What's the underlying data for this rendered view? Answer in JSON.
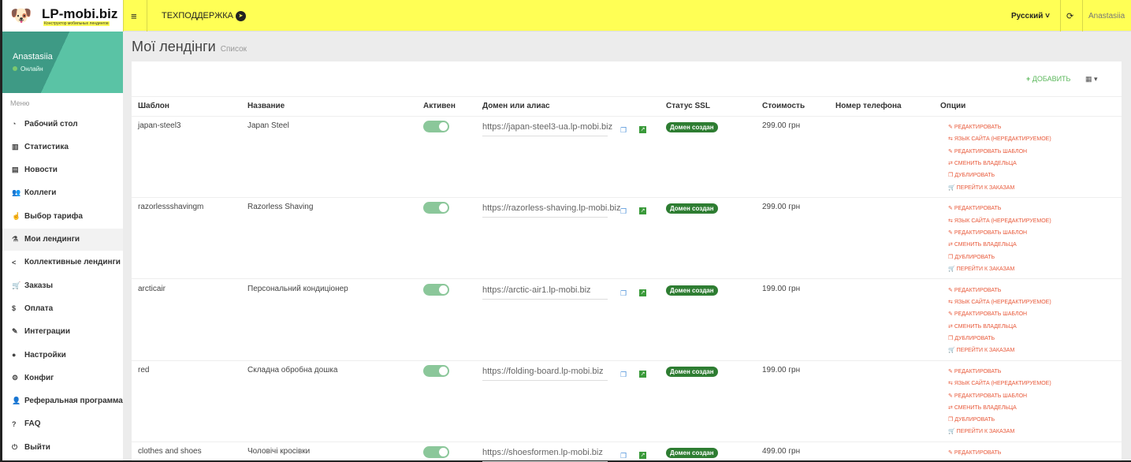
{
  "brand": {
    "name": "LP-mobi.biz",
    "tagline": "Конструктор мобильных лендингов"
  },
  "topbar": {
    "support": "ТЕХПОДДЕРЖКА",
    "language": "Русский",
    "user": "Anastasiia"
  },
  "sidebar": {
    "user": "Anastasiia",
    "status": "Онлайн",
    "menu_header": "Меню",
    "items": [
      {
        "label": "Рабочий стол",
        "icon": "dashboard-icon"
      },
      {
        "label": "Статистика",
        "icon": "bar-chart-icon"
      },
      {
        "label": "Новости",
        "icon": "newspaper-icon"
      },
      {
        "label": "Коллеги",
        "icon": "users-icon"
      },
      {
        "label": "Выбор тарифа",
        "icon": "hand-pointer-icon"
      },
      {
        "label": "Мои лендинги",
        "icon": "landing-icon",
        "active": true
      },
      {
        "label": "Коллективные лендинги",
        "icon": "share-icon"
      },
      {
        "label": "Заказы",
        "icon": "cart-icon"
      },
      {
        "label": "Оплата",
        "icon": "dollar-icon"
      },
      {
        "label": "Интеграции",
        "icon": "plug-icon"
      },
      {
        "label": "Настройки",
        "icon": "user-icon"
      },
      {
        "label": "Конфиг",
        "icon": "cogs-icon"
      },
      {
        "label": "Реферальная программа",
        "icon": "user-plus-icon"
      },
      {
        "label": "FAQ",
        "icon": "question-icon"
      },
      {
        "label": "Выйти",
        "icon": "power-icon"
      }
    ]
  },
  "page": {
    "title": "Мої лендінги",
    "subtitle": "Список",
    "add": "ДОБАВИТЬ"
  },
  "table": {
    "headers": [
      "Шаблон",
      "Название",
      "Активен",
      "Домен или алиас",
      "Статус SSL",
      "Стоимость",
      "Номер телефона",
      "Опции"
    ],
    "options": [
      "РЕДАКТИРОВАТЬ",
      "ЯЗЫК САЙТА (НЕРЕДАКТИРУЕМОЕ)",
      "РЕДАКТИРОВАТЬ ШАБЛОН",
      "СМЕНИТЬ ВЛАДЕЛЬЦА",
      "ДУБЛИРОВАТЬ",
      "ПЕРЕЙТИ К ЗАКАЗАМ"
    ],
    "rows": [
      {
        "template": "japan-steel3",
        "name": "Japan Steel",
        "active": true,
        "domain": "https://japan-steel3-ua.lp-mobi.biz",
        "ssl": "Домен создан",
        "price": "299.00 грн",
        "phone": ""
      },
      {
        "template": "razorlessshavingm",
        "name": "Razorless Shaving",
        "active": true,
        "domain": "https://razorless-shaving.lp-mobi.biz",
        "ssl": "Домен создан",
        "price": "299.00 грн",
        "phone": ""
      },
      {
        "template": "arcticair",
        "name": "Персональний кондиціонер",
        "active": true,
        "domain": "https://arctic-air1.lp-mobi.biz",
        "ssl": "Домен создан",
        "price": "199.00 грн",
        "phone": ""
      },
      {
        "template": "red",
        "name": "Складна обробна дошка",
        "active": true,
        "domain": "https://folding-board.lp-mobi.biz",
        "ssl": "Домен создан",
        "price": "199.00 грн",
        "phone": ""
      },
      {
        "template": "clothes and shoes",
        "name": "Чоловічі кросівки",
        "active": true,
        "domain": "https://shoesformen.lp-mobi.biz",
        "ssl": "Домен создан",
        "price": "499.00 грн",
        "phone": ""
      }
    ]
  }
}
